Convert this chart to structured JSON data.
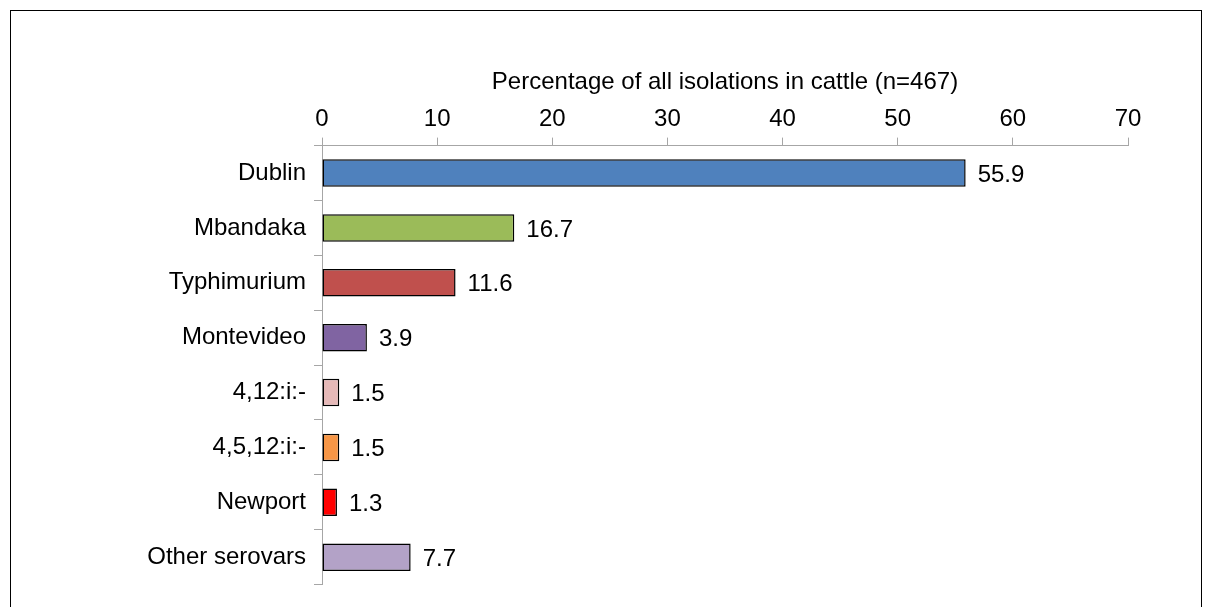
{
  "chart_data": {
    "type": "bar",
    "orientation": "horizontal",
    "xlabel": "Percentage of all isolations in cattle (n=467)",
    "categories": [
      "Dublin",
      "Mbandaka",
      "Typhimurium",
      "Montevideo",
      "4,12:i:-",
      "4,5,12:i:-",
      "Newport",
      "Other serovars"
    ],
    "values": [
      55.9,
      16.7,
      11.6,
      3.9,
      1.5,
      1.5,
      1.3,
      7.7
    ],
    "colors": [
      "#4f81bd",
      "#9bbb59",
      "#c0504d",
      "#8064a2",
      "#e6b9b8",
      "#f79646",
      "#ff0000",
      "#b3a2c7"
    ],
    "xlim": [
      0,
      70
    ],
    "xticks": [
      0,
      10,
      20,
      30,
      40,
      50,
      60,
      70
    ],
    "data_labels": true,
    "grid": false,
    "legend": false
  }
}
